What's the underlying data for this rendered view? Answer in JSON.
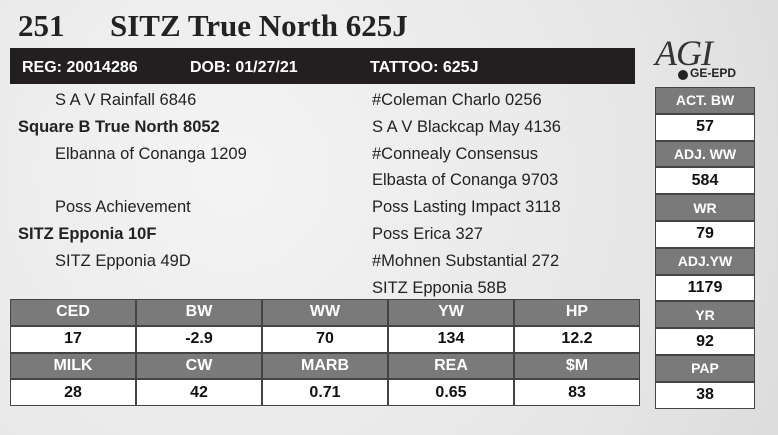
{
  "header": {
    "lot": "251",
    "name": "SITZ True North 625J"
  },
  "info": [
    "REG: 20014286",
    "DOB: 01/27/21",
    "TATTOO: 625J"
  ],
  "logo": {
    "mark": "AGI",
    "sub": "GE-EPD"
  },
  "pedigree": {
    "left": [
      "S A V Rainfall 6846",
      "Square B True North 8052",
      "Elbanna of Conanga 1209",
      null,
      "Poss Achievement",
      "SITZ Epponia 10F",
      "SITZ Epponia 49D",
      null
    ],
    "right": [
      "#Coleman Charlo 0256",
      "S A V Blackcap May 4136",
      "#Connealy Consensus",
      "Elbasta of Conanga 9703",
      "Poss Lasting Impact 3118",
      "Poss Erica 327",
      "#Mohnen Substantial 272",
      "SITZ Epponia 58B"
    ]
  },
  "performance": [
    {
      "label": "ACT. BW",
      "value": "57"
    },
    {
      "label": "ADJ. WW",
      "value": "584"
    },
    {
      "label": "WR",
      "value": "79"
    },
    {
      "label": "ADJ.YW",
      "value": "1179"
    },
    {
      "label": "YR",
      "value": "92"
    },
    {
      "label": "PAP",
      "value": "38"
    }
  ],
  "epd": {
    "rows": [
      {
        "labels": [
          "CED",
          "BW",
          "WW",
          "YW",
          "HP"
        ],
        "values": [
          "17",
          "-2.9",
          "70",
          "134",
          "12.2"
        ]
      },
      {
        "labels": [
          "MILK",
          "CW",
          "MARB",
          "REA",
          "$M"
        ],
        "values": [
          "28",
          "42",
          "0.71",
          "0.65",
          "83"
        ]
      }
    ]
  }
}
